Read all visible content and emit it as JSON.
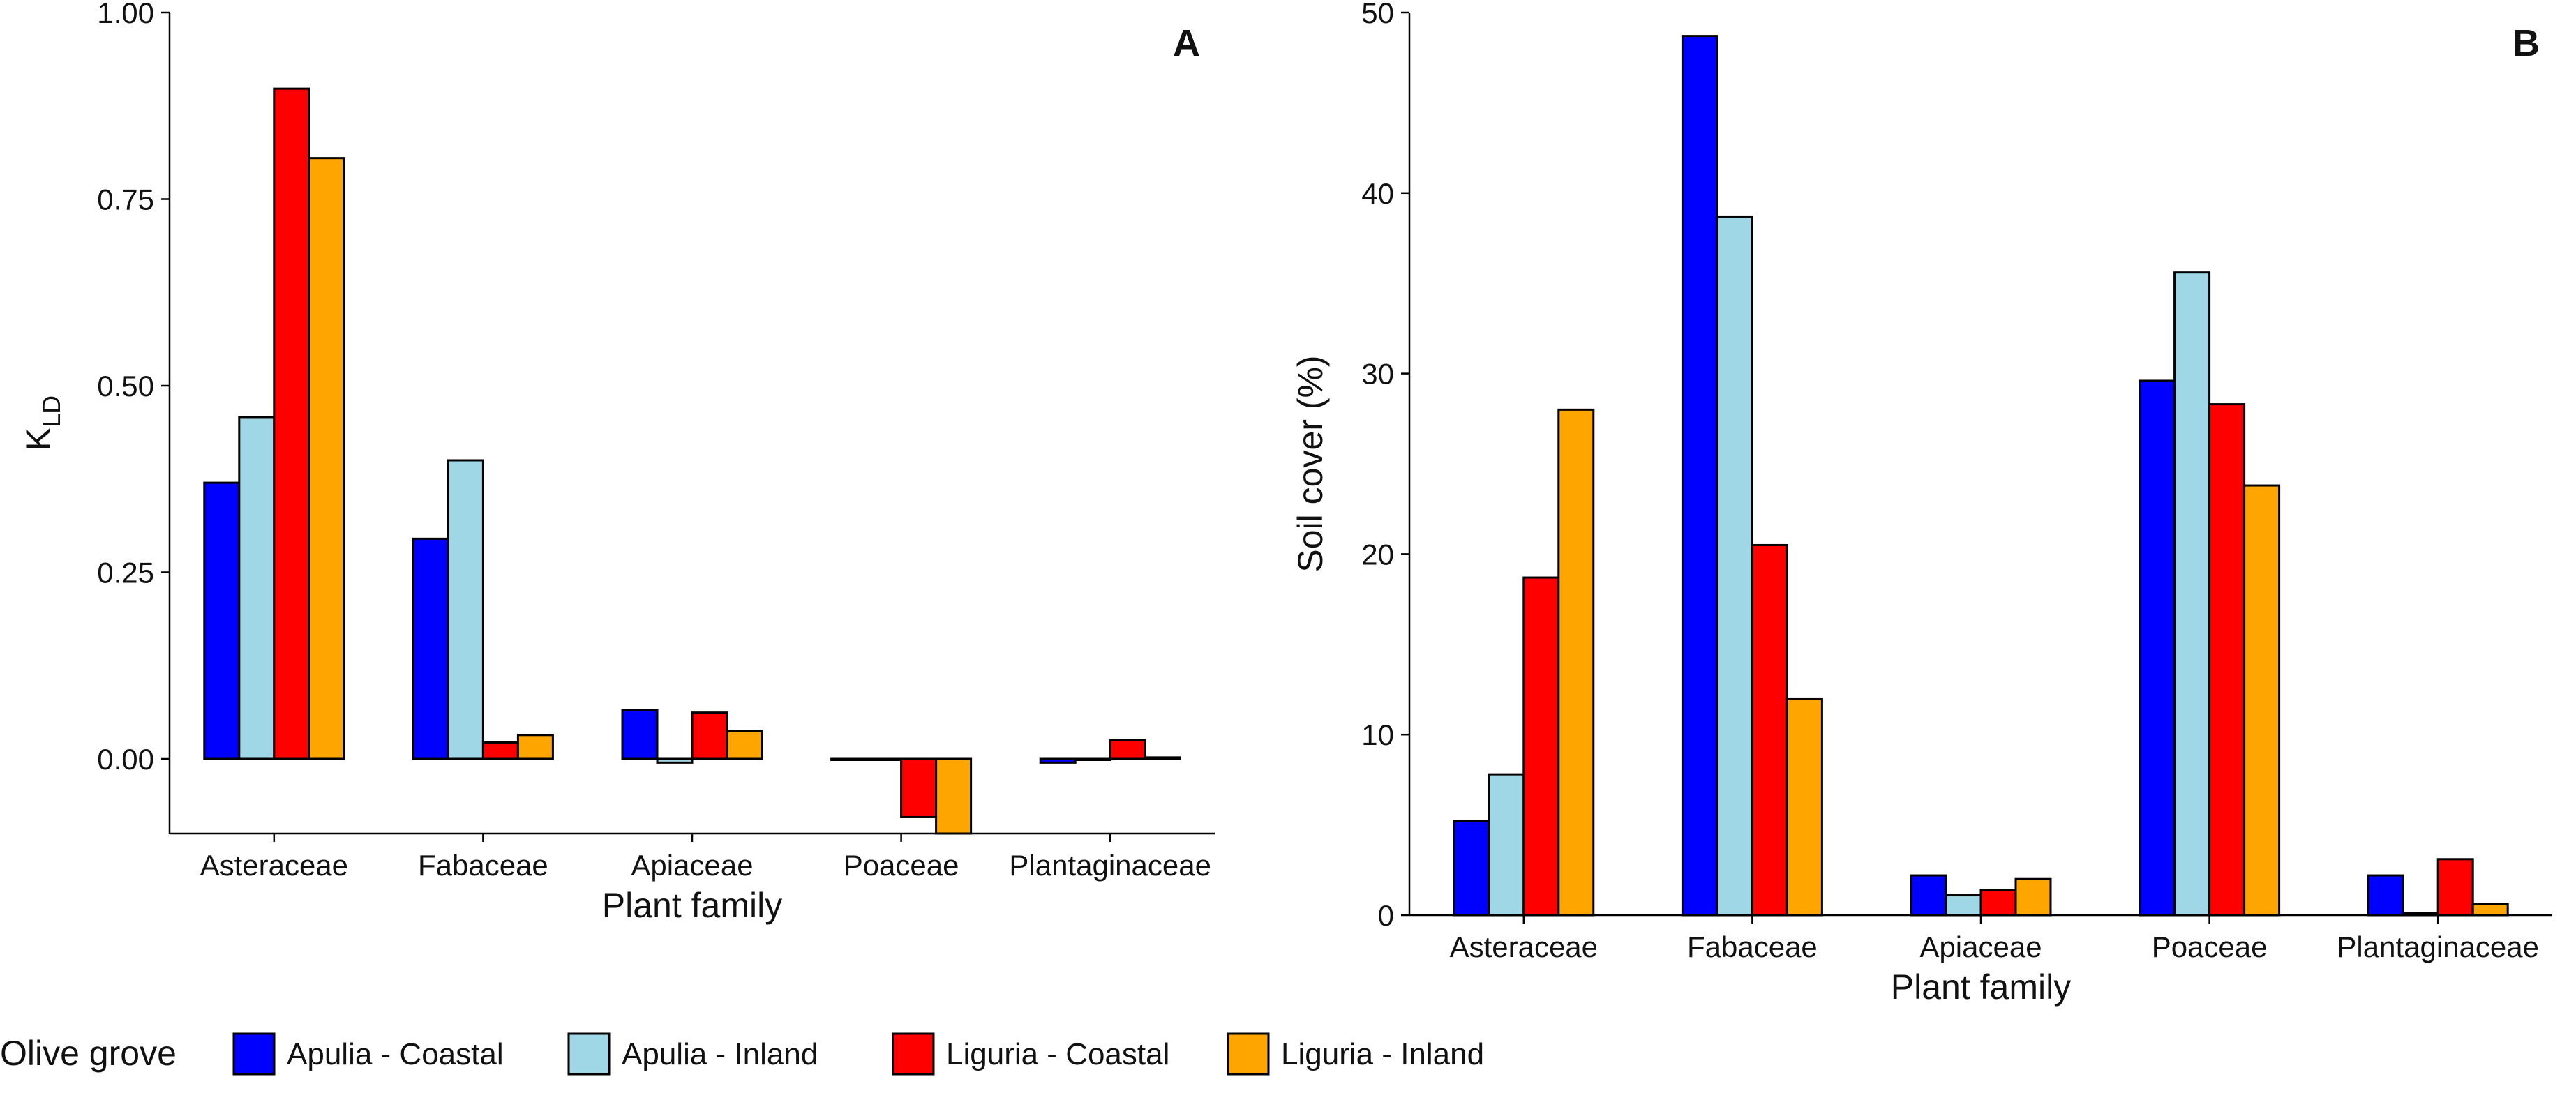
{
  "chart_data": [
    {
      "id": "A",
      "type": "bar",
      "panel_label": "A",
      "title": "",
      "xlabel": "Plant family",
      "ylabel_main": "K",
      "ylabel_sub": "LD",
      "ylim": [
        -0.1,
        1.0
      ],
      "yticks": [
        0.0,
        0.25,
        0.5,
        0.75,
        1.0
      ],
      "ytick_labels": [
        "0.00",
        "0.25",
        "0.50",
        "0.75",
        "1.00"
      ],
      "grid": false,
      "categories": [
        "Asteraceae",
        "Fabaceae",
        "Apiaceae",
        "Poaceae",
        "Plantaginaceae"
      ],
      "series": [
        {
          "name": "Apulia - Coastal",
          "values": [
            0.37,
            0.295,
            0.065,
            0.0,
            -0.005
          ]
        },
        {
          "name": "Apulia - Inland",
          "values": [
            0.458,
            0.4,
            -0.005,
            0.0,
            0.0
          ]
        },
        {
          "name": "Liguria - Coastal",
          "values": [
            0.898,
            0.022,
            0.062,
            -0.078,
            0.025
          ]
        },
        {
          "name": "Liguria - Inland",
          "values": [
            0.805,
            0.032,
            0.037,
            -0.1,
            0.002
          ]
        }
      ]
    },
    {
      "id": "B",
      "type": "bar",
      "panel_label": "B",
      "title": "",
      "xlabel": "Plant family",
      "ylabel_main": "Soil cover (%)",
      "ylabel_sub": "",
      "ylim": [
        0,
        50
      ],
      "yticks": [
        0,
        10,
        20,
        30,
        40,
        50
      ],
      "ytick_labels": [
        "0",
        "10",
        "20",
        "30",
        "40",
        "50"
      ],
      "grid": false,
      "categories": [
        "Asteraceae",
        "Fabaceae",
        "Apiaceae",
        "Poaceae",
        "Plantaginaceae"
      ],
      "series": [
        {
          "name": "Apulia - Coastal",
          "values": [
            5.2,
            48.7,
            2.2,
            29.6,
            2.2
          ]
        },
        {
          "name": "Apulia - Inland",
          "values": [
            7.8,
            38.7,
            1.1,
            35.6,
            0.1
          ]
        },
        {
          "name": "Liguria - Coastal",
          "values": [
            18.7,
            20.5,
            1.4,
            28.3,
            3.1
          ]
        },
        {
          "name": "Liguria - Inland",
          "values": [
            28.0,
            12.0,
            2.0,
            23.8,
            0.6
          ]
        }
      ]
    }
  ],
  "legend": {
    "title": "Olive grove",
    "position": "bottom",
    "items": [
      "Apulia - Coastal",
      "Apulia - Inland",
      "Liguria - Coastal",
      "Liguria - Inland"
    ]
  },
  "colors": {
    "Apulia - Coastal": "#0000ff",
    "Apulia - Inland": "#9fd7e6",
    "Liguria - Coastal": "#ff0000",
    "Liguria - Inland": "#ffa500"
  }
}
